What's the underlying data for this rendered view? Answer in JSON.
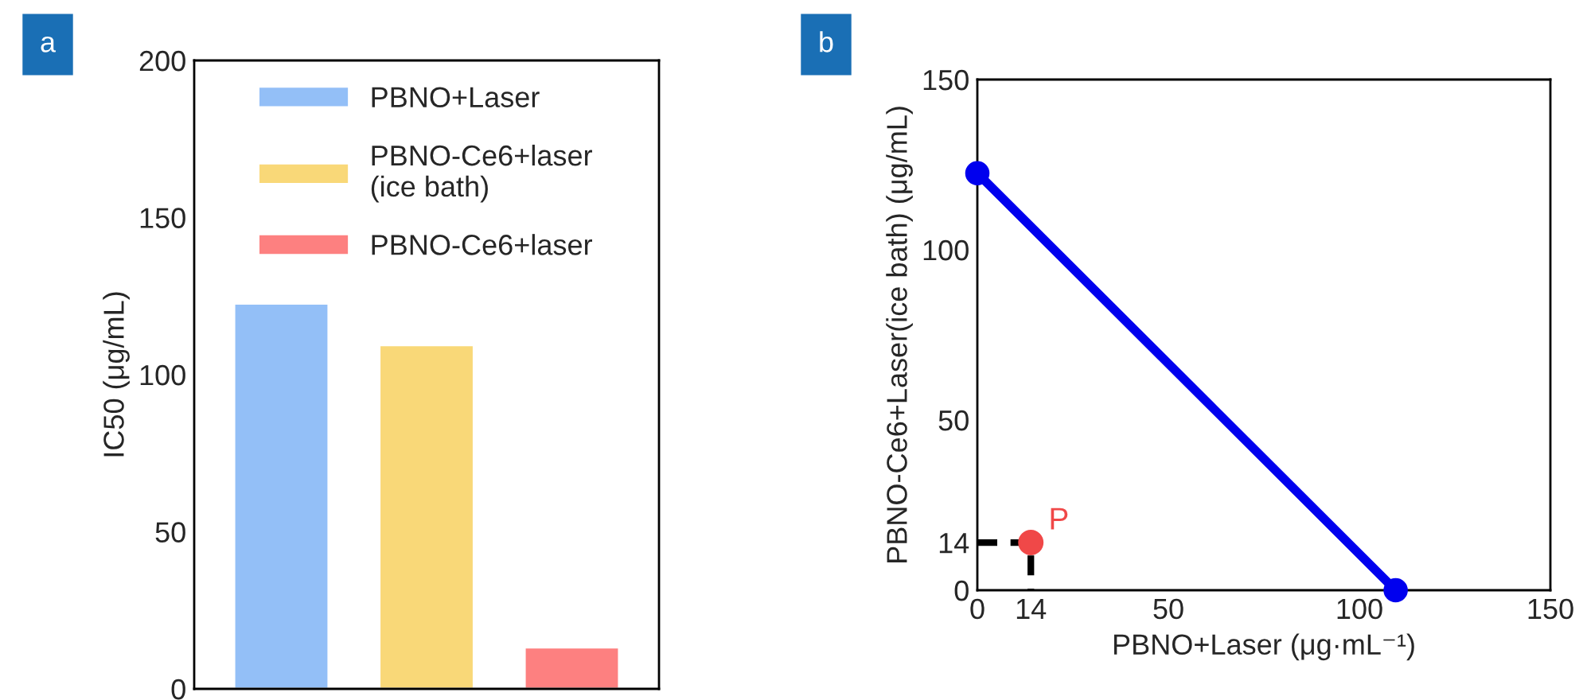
{
  "chart_data": [
    {
      "type": "bar",
      "ylabel": "IC50 (μg/mL)",
      "annotations": [
        "a"
      ],
      "categories": [
        null,
        null,
        null
      ],
      "series": [
        {
          "name": "PBNO+Laser",
          "color": "#93bff7",
          "values": [
            122.6,
            null,
            null
          ]
        },
        {
          "name": "PBNO-Ce6+laser\n(ice bath)",
          "color": "#f9d878",
          "values": [
            null,
            109.4,
            null
          ]
        },
        {
          "name": "PBNO-Ce6+laser",
          "color": "#fd8080",
          "values": [
            null,
            null,
            13.2
          ]
        }
      ],
      "ylim": [
        0,
        200
      ],
      "yticks": [
        0,
        50,
        100,
        150,
        200
      ],
      "grid": false,
      "legend": "top",
      "tick_labels": "y"
    },
    {
      "type": "line",
      "xlabel": "PBNO+Laser (μg·mL⁻¹)",
      "ylabel": "PBNO-Ce6+Laser(ice bath) (μg/mL)",
      "annotations": [
        "b",
        {
          "text": "P",
          "x": 14,
          "y": 14
        }
      ],
      "series": [
        {
          "type": "line",
          "color": "#000000",
          "x": [
            0,
            14,
            14
          ],
          "values": [
            14,
            14,
            0
          ],
          "line_style": "dashed",
          "marker": "none"
        },
        {
          "type": "line",
          "color": "#0000ee",
          "x": [
            0,
            109.5
          ],
          "values": [
            122.5,
            0
          ],
          "marker": "circle",
          "line_style": "solid"
        },
        {
          "type": "scatter",
          "color": "#f04848",
          "x": [
            14
          ],
          "values": [
            14
          ],
          "marker": "circle"
        }
      ],
      "xlim": [
        0,
        150
      ],
      "xticks": [
        0,
        14,
        50,
        100,
        150
      ],
      "ylim": [
        0,
        150
      ],
      "yticks": [
        0,
        14,
        50,
        100,
        150
      ],
      "grid": false,
      "legend": false
    }
  ]
}
